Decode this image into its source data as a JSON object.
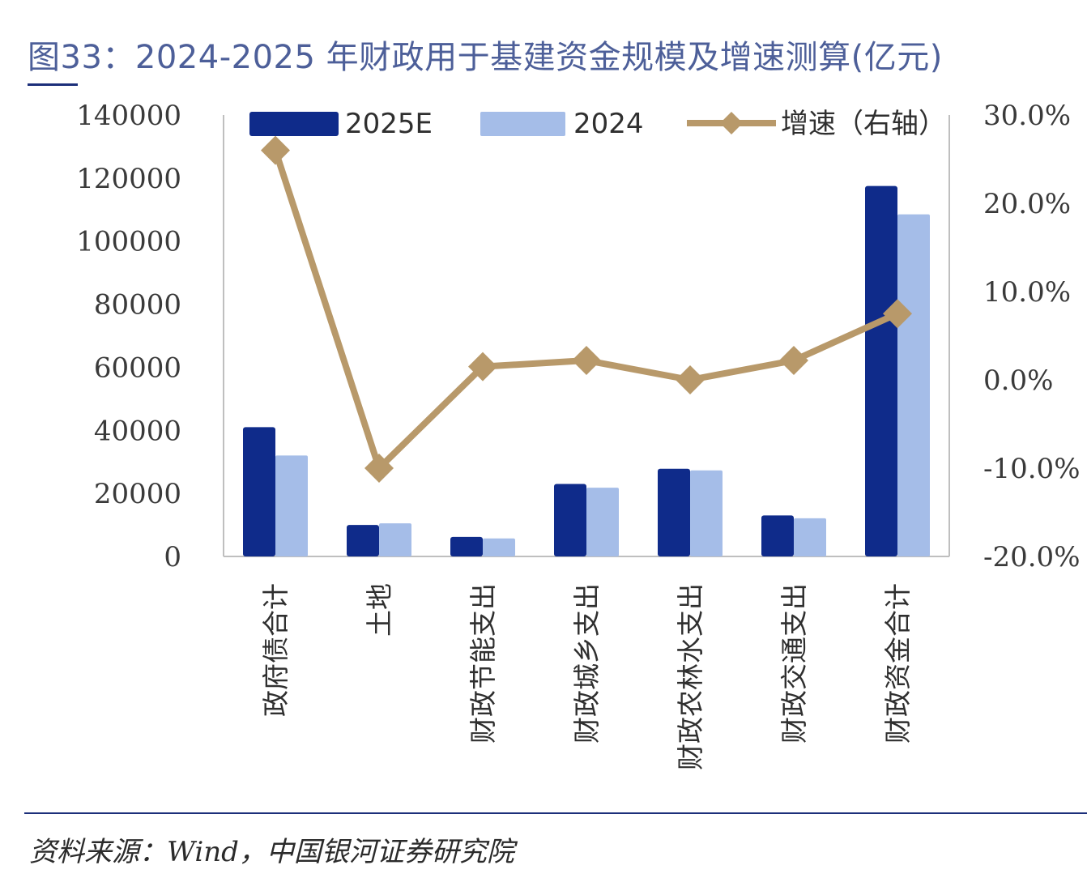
{
  "title": "图33：2024-2025 年财政用于基建资金规模及增速测算(亿元)",
  "source": "资料来源：Wind，中国银河证券研究院",
  "colors": {
    "series_2025": "#0f2b8a",
    "series_2024": "#a5bde8",
    "growth_line": "#b8996a",
    "axis": "#bfbfbf",
    "title": "#4d5f99"
  },
  "chart_data": {
    "type": "bar",
    "categories": [
      "政府债合计",
      "土地",
      "财政节能支出",
      "财政城乡支出",
      "财政农林水支出",
      "财政交通支出",
      "财政资金合计"
    ],
    "series": [
      {
        "name": "2025E",
        "kind": "bar",
        "axis": "left",
        "values": [
          41000,
          10000,
          6200,
          23000,
          27800,
          13000,
          117500
        ]
      },
      {
        "name": "2024",
        "kind": "bar",
        "axis": "left",
        "values": [
          32000,
          10500,
          5700,
          21800,
          27300,
          12100,
          108500
        ]
      },
      {
        "name": "增速（右轴）",
        "kind": "line",
        "axis": "right",
        "values": [
          26.0,
          -10.0,
          1.5,
          2.2,
          0.0,
          2.2,
          7.5
        ]
      }
    ],
    "left_axis": {
      "min": 0,
      "max": 140000,
      "ticks": [
        0,
        20000,
        40000,
        60000,
        80000,
        100000,
        120000,
        140000
      ]
    },
    "right_axis": {
      "min": -20.0,
      "max": 30.0,
      "ticks": [
        "-20.0%",
        "-10.0%",
        "0.0%",
        "10.0%",
        "20.0%",
        "30.0%"
      ]
    },
    "legend": [
      "2025E",
      "2024",
      "增速（右轴）"
    ],
    "legend_placement": "top",
    "grid": false
  }
}
